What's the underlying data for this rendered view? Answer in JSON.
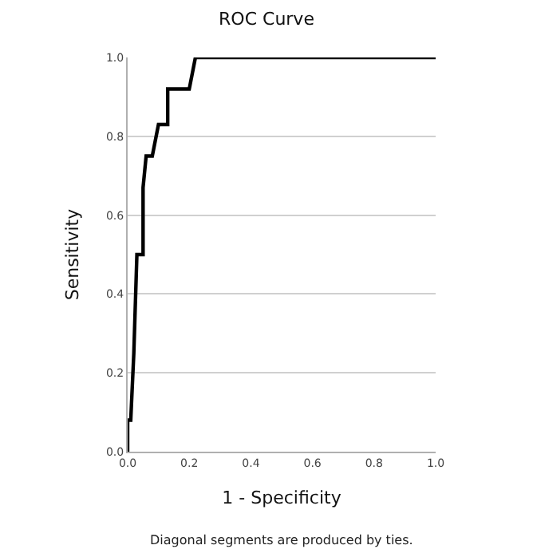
{
  "chart_data": {
    "type": "line",
    "title": "ROC Curve",
    "xlabel": "1 - Specificity",
    "ylabel": "Sensitivity",
    "annotations": [
      "Diagonal segments are produced by ties."
    ],
    "x": [
      0,
      0,
      0.01,
      0.02,
      0.03,
      0.05,
      0.05,
      0.06,
      0.08,
      0.1,
      0.13,
      0.13,
      0.2,
      0.22,
      1.0
    ],
    "series": [
      {
        "color": "#000000",
        "values": [
          0,
          0.08,
          0.08,
          0.25,
          0.5,
          0.5,
          0.67,
          0.75,
          0.75,
          0.83,
          0.83,
          0.92,
          0.92,
          1.0,
          1.0
        ]
      }
    ],
    "xlim": [
      0,
      1
    ],
    "ylim": [
      0,
      1
    ],
    "xticks": [
      {
        "value": 0,
        "label": "0.0"
      },
      0.2,
      0.4,
      0.6,
      0.8,
      {
        "value": 1,
        "label": "1.0"
      }
    ],
    "yticks": [
      {
        "value": 0,
        "label": "0.0"
      },
      0.2,
      0.4,
      0.6,
      0.8,
      {
        "value": 1,
        "label": "1.0"
      }
    ],
    "grid": "y",
    "marker": "none",
    "line_style": "solid"
  }
}
